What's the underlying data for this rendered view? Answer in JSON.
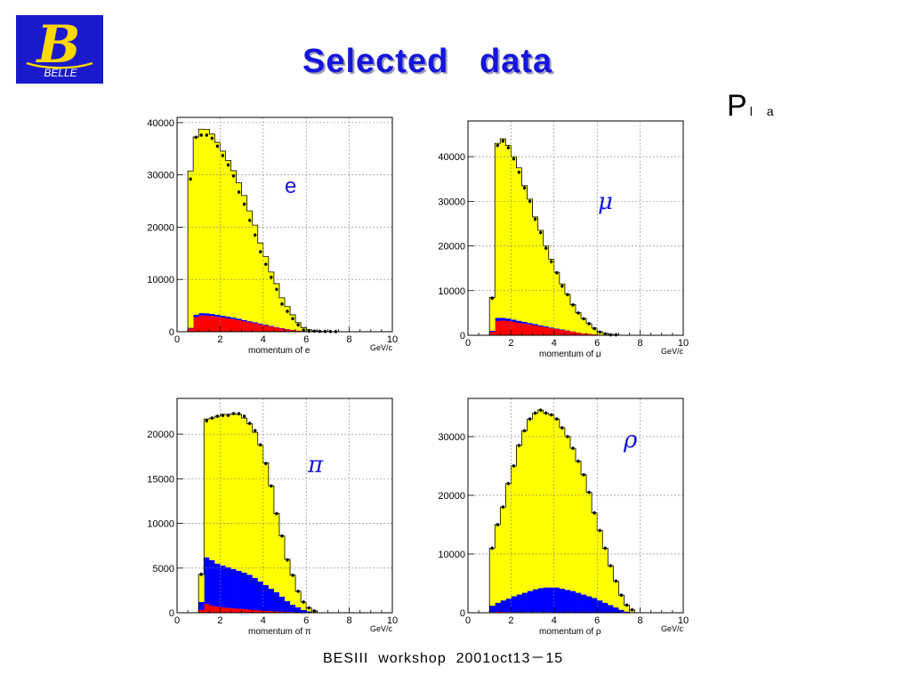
{
  "header": {
    "title": "Selected   data",
    "corner_main": "P",
    "corner_sub": "l a"
  },
  "logo": {
    "text": "BELLE",
    "glyph": "B"
  },
  "footer": {
    "text": "BESIII  workshop  2001oct13－15"
  },
  "chart_data": [
    {
      "type": "bar",
      "stacked": true,
      "particle_label": "e",
      "xlabel": "momentum of e",
      "xunit": "GeV/c",
      "xlim": [
        0,
        10
      ],
      "ylim": [
        0,
        41000
      ],
      "x_ticks": [
        0,
        2,
        4,
        6,
        8,
        10
      ],
      "y_ticks": [
        0,
        10000,
        20000,
        30000,
        40000
      ],
      "grid": true,
      "bin_width": 0.25,
      "x_start": 0.5,
      "series": [
        {
          "values": [
            600,
            2800,
            3100,
            3100,
            3000,
            2850,
            2700,
            2550,
            2400,
            2200,
            2000,
            1800,
            1600,
            1400,
            1200,
            1000,
            800,
            600,
            450,
            300,
            200,
            120,
            60,
            30,
            10,
            0,
            0,
            0
          ]
        },
        {
          "values": [
            150,
            450,
            450,
            420,
            400,
            380,
            350,
            320,
            300,
            280,
            250,
            220,
            200,
            180,
            150,
            120,
            100,
            80,
            60,
            40,
            30,
            20,
            10,
            5,
            0,
            0,
            0,
            0
          ]
        },
        {
          "values": [
            30000,
            34000,
            35200,
            35200,
            34400,
            33000,
            31500,
            29900,
            28100,
            26000,
            23800,
            21100,
            18600,
            15400,
            13000,
            10300,
            8300,
            5800,
            4300,
            2900,
            1500,
            660,
            330,
            165,
            90,
            50,
            40,
            30
          ]
        }
      ],
      "data_points": [
        29200,
        37200,
        37600,
        37600,
        37000,
        35500,
        33700,
        31900,
        29800,
        26700,
        24400,
        21300,
        18500,
        15300,
        12900,
        10400,
        8100,
        5300,
        3900,
        2500,
        1300,
        300,
        130,
        100,
        70,
        50,
        40,
        30
      ]
    },
    {
      "type": "bar",
      "stacked": true,
      "particle_label": "μ",
      "xlabel": "momentum of μ",
      "xunit": "GeV/c",
      "xlim": [
        0,
        10
      ],
      "ylim": [
        0,
        48000
      ],
      "x_ticks": [
        0,
        2,
        4,
        6,
        8,
        10
      ],
      "y_ticks": [
        0,
        10000,
        20000,
        30000,
        40000
      ],
      "grid": true,
      "bin_width": 0.25,
      "x_start": 1.0,
      "series": [
        {
          "values": [
            800,
            3200,
            3300,
            3200,
            3000,
            2800,
            2600,
            2400,
            2200,
            2000,
            1800,
            1600,
            1400,
            1200,
            1000,
            800,
            600,
            400,
            300,
            200,
            100,
            50,
            20,
            0
          ]
        },
        {
          "values": [
            200,
            700,
            600,
            550,
            500,
            450,
            400,
            350,
            300,
            250,
            200,
            150,
            120,
            100,
            80,
            60,
            40,
            30,
            20,
            10,
            5,
            0,
            0,
            0
          ]
        },
        {
          "values": [
            7500,
            39100,
            40100,
            38750,
            36500,
            34250,
            30500,
            27750,
            24000,
            21250,
            18000,
            15250,
            12600,
            10200,
            8100,
            6000,
            4400,
            3300,
            2300,
            1400,
            700,
            380,
            200,
            100
          ]
        }
      ],
      "data_points": [
        8300,
        42500,
        43500,
        42000,
        39500,
        36500,
        33000,
        30000,
        26000,
        23000,
        19500,
        16500,
        14000,
        11000,
        9100,
        6800,
        5000,
        3700,
        2600,
        1500,
        700,
        300,
        100,
        100
      ]
    },
    {
      "type": "bar",
      "stacked": true,
      "particle_label": "π",
      "xlabel": "momentum of π",
      "xunit": "GeV/c",
      "xlim": [
        0,
        10
      ],
      "ylim": [
        0,
        24000
      ],
      "x_ticks": [
        0,
        2,
        4,
        6,
        8,
        10
      ],
      "y_ticks": [
        0,
        5000,
        10000,
        15000,
        20000
      ],
      "grid": true,
      "bin_width": 0.25,
      "x_start": 1.0,
      "series": [
        {
          "values": [
            300,
            1000,
            800,
            700,
            600,
            550,
            500,
            450,
            400,
            350,
            300,
            250,
            200,
            170,
            150,
            120,
            100,
            80,
            50,
            30,
            20,
            10
          ]
        },
        {
          "values": [
            900,
            5200,
            5100,
            4800,
            4700,
            4550,
            4400,
            4250,
            4100,
            3900,
            3600,
            3250,
            2900,
            2530,
            2150,
            1680,
            1200,
            820,
            550,
            270,
            130,
            40
          ]
        },
        {
          "values": [
            3100,
            15500,
            15900,
            16500,
            16900,
            17100,
            17400,
            17500,
            17300,
            16900,
            16300,
            15300,
            13700,
            11500,
            8800,
            6800,
            4700,
            3300,
            1800,
            900,
            400,
            150
          ]
        }
      ],
      "data_points": [
        4300,
        21500,
        21800,
        22000,
        22100,
        22100,
        22300,
        22300,
        22000,
        21200,
        20400,
        18800,
        16700,
        14200,
        11100,
        8600,
        5900,
        4200,
        2400,
        1200,
        550,
        200
      ]
    },
    {
      "type": "bar",
      "stacked": true,
      "particle_label": "ρ",
      "xlabel": "momentum of ρ",
      "xunit": "GeV/c",
      "xlim": [
        0,
        10
      ],
      "ylim": [
        0,
        36500
      ],
      "x_ticks": [
        0,
        2,
        4,
        6,
        8,
        10
      ],
      "y_ticks": [
        0,
        10000,
        20000,
        30000
      ],
      "grid": true,
      "bin_width": 0.25,
      "x_start": 1.0,
      "series": [
        {
          "values": [
            100,
            150,
            150,
            100,
            100,
            100,
            100,
            100,
            100,
            100,
            100,
            100,
            80,
            60,
            50,
            40,
            30,
            20,
            10,
            10,
            0,
            0,
            0,
            0,
            0,
            0,
            0
          ]
        },
        {
          "values": [
            1100,
            1550,
            1950,
            2300,
            2700,
            3000,
            3300,
            3600,
            3900,
            4100,
            4200,
            4200,
            4220,
            4040,
            3850,
            3660,
            3370,
            3080,
            2790,
            2490,
            2100,
            1700,
            1300,
            900,
            500,
            200,
            100
          ]
        },
        {
          "values": [
            9800,
            13300,
            15900,
            19600,
            22200,
            25400,
            27600,
            29300,
            30000,
            30300,
            29700,
            29400,
            28700,
            27400,
            26100,
            24300,
            22400,
            20400,
            17700,
            14500,
            11900,
            9300,
            6700,
            4500,
            2500,
            1100,
            400
          ]
        }
      ],
      "data_points": [
        11000,
        15000,
        18000,
        22000,
        25000,
        28500,
        31000,
        33000,
        34000,
        34500,
        34000,
        33700,
        33000,
        31500,
        30000,
        28000,
        25800,
        23500,
        20500,
        17000,
        14000,
        11000,
        8000,
        5400,
        3000,
        1300,
        500
      ]
    }
  ],
  "colors": {
    "title": "#1515dd",
    "label": "#1515dd",
    "logo_bg": "#1a1acc",
    "logo_glyph": "#ffd800",
    "fill_yellow": "#ffff00",
    "fill_blue": "#0000ff",
    "fill_red": "#ff0000",
    "grid": "#7f7f7f"
  }
}
